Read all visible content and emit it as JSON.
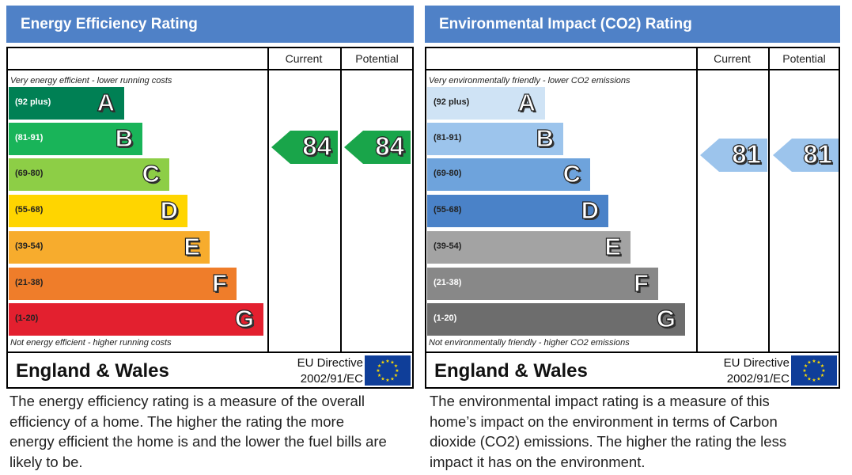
{
  "chart_data": [
    {
      "type": "bar",
      "title": "Energy Efficiency Rating",
      "columns": [
        "Current",
        "Potential"
      ],
      "top_note": "Very energy efficient - lower running costs",
      "bottom_note": "Not energy efficient - higher running costs",
      "bands": [
        {
          "letter": "A",
          "range": "(92 plus)",
          "color": "#008054",
          "text_color": "#ffffff"
        },
        {
          "letter": "B",
          "range": "(81-91)",
          "color": "#19b459",
          "text_color": "#ffffff"
        },
        {
          "letter": "C",
          "range": "(69-80)",
          "color": "#8dce46",
          "text_color": "#222222"
        },
        {
          "letter": "D",
          "range": "(55-68)",
          "color": "#ffd500",
          "text_color": "#222222"
        },
        {
          "letter": "E",
          "range": "(39-54)",
          "color": "#f7ac2d",
          "text_color": "#222222"
        },
        {
          "letter": "F",
          "range": "(21-38)",
          "color": "#ef7d2a",
          "text_color": "#222222"
        },
        {
          "letter": "G",
          "range": "(1-20)",
          "color": "#e3202f",
          "text_color": "#222222"
        }
      ],
      "current": 84,
      "potential": 84,
      "rating_color": "#19a54a",
      "region": "England & Wales",
      "directive_line1": "EU Directive",
      "directive_line2": "2002/91/EC",
      "description": "The energy efficiency rating is a measure of the overall efficiency of a home. The higher the rating the more energy efficient the home is and the lower the fuel bills are likely to be."
    },
    {
      "type": "bar",
      "title": "Environmental Impact (CO2) Rating",
      "columns": [
        "Current",
        "Potential"
      ],
      "top_note": "Very environmentally friendly - lower CO2 emissions",
      "bottom_note": "Not environmentally friendly - higher CO2 emissions",
      "bands": [
        {
          "letter": "A",
          "range": "(92 plus)",
          "color": "#cfe3f5",
          "text_color": "#222222"
        },
        {
          "letter": "B",
          "range": "(81-91)",
          "color": "#9cc4ec",
          "text_color": "#222222"
        },
        {
          "letter": "C",
          "range": "(69-80)",
          "color": "#6ea3dc",
          "text_color": "#222222"
        },
        {
          "letter": "D",
          "range": "(55-68)",
          "color": "#4a82c8",
          "text_color": "#222222"
        },
        {
          "letter": "E",
          "range": "(39-54)",
          "color": "#a3a3a3",
          "text_color": "#222222"
        },
        {
          "letter": "F",
          "range": "(21-38)",
          "color": "#888888",
          "text_color": "#ffffff"
        },
        {
          "letter": "G",
          "range": "(1-20)",
          "color": "#6d6d6d",
          "text_color": "#ffffff"
        }
      ],
      "current": 81,
      "potential": 81,
      "rating_color": "#9cc4ec",
      "region": "England & Wales",
      "directive_line1": "EU Directive",
      "directive_line2": "2002/91/EC",
      "description": "The environmental impact rating is a measure of this home’s impact on the environment in terms of Carbon dioxide (CO2) emissions. The higher the rating the less impact it has on the environment."
    }
  ]
}
